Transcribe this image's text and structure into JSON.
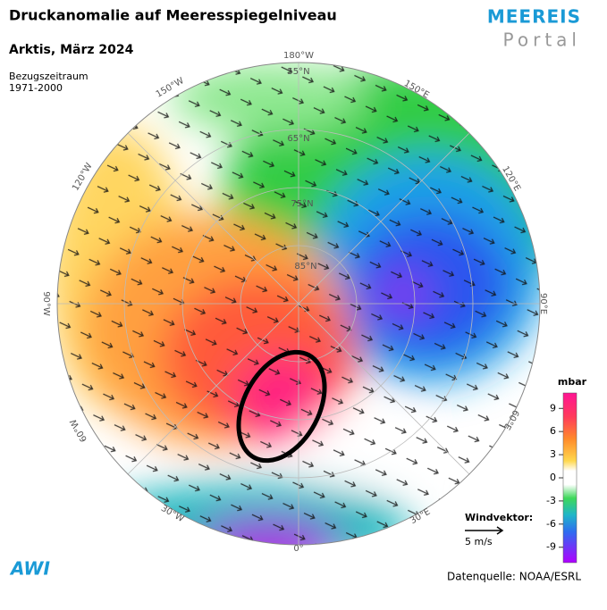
{
  "header": {
    "title": "Druckanomalie auf Meeresspiegelniveau",
    "subtitle": "Arktis, März 2024",
    "reference": [
      "Bezugszeitraum",
      "1971-2000"
    ]
  },
  "logo": {
    "line1": "MEEREIS",
    "line2": "Portal"
  },
  "map": {
    "longitudes": [
      "180°W",
      "150°W",
      "120°W",
      "90°W",
      "60°W",
      "30°W",
      "0°",
      "30°E",
      "60°E",
      "90°E",
      "120°E",
      "150°E"
    ],
    "latitudes": [
      "55°N",
      "65°N",
      "75°N",
      "85°N"
    ]
  },
  "colorbar": {
    "unit": "mbar",
    "ticks": [
      9,
      6,
      3,
      0,
      -3,
      -6,
      -9
    ],
    "lim": [
      -11,
      11
    ]
  },
  "wind": {
    "label": "Windvektor:",
    "scale": "5 m/s"
  },
  "footer": {
    "source": "Datenquelle: NOAA/ESRL",
    "institute": "AWI"
  }
}
